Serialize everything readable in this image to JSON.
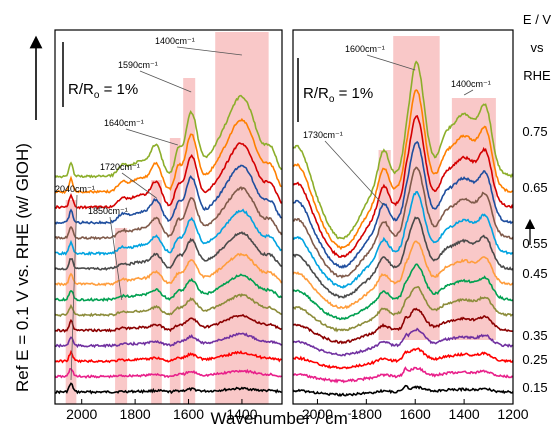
{
  "chart_data": [
    {
      "type": "line",
      "panel": "left",
      "xlim": [
        2100,
        1250
      ],
      "x_ticks": [
        2000,
        1800,
        1600,
        1400
      ],
      "scale_bar_text": "R/Ro = 1%",
      "scale_bar_base": "R/R",
      "scale_bar_sub": "o",
      "scale_bar_rest": " = 1%",
      "shaded_bands": [
        {
          "label": "2040cm-1",
          "x": [
            2060,
            2020
          ]
        },
        {
          "label": "1850cm-1",
          "x": [
            1875,
            1830
          ]
        },
        {
          "label": "1720cm-1",
          "x": [
            1740,
            1700
          ]
        },
        {
          "label": "1640cm-1",
          "x": [
            1670,
            1630
          ]
        },
        {
          "label": "1590cm-1",
          "x": [
            1620,
            1575
          ]
        },
        {
          "label": "1400cm-1",
          "x": [
            1500,
            1300
          ]
        }
      ],
      "annotations": [
        "2040cm⁻¹",
        "1850cm⁻¹",
        "1720cm⁻¹",
        "1640cm⁻¹",
        "1590cm⁻¹",
        "1400cm⁻¹"
      ],
      "series_potentials": [
        0.15,
        0.2,
        0.25,
        0.3,
        0.35,
        0.4,
        0.45,
        0.5,
        0.55,
        0.6,
        0.65,
        0.7,
        0.75,
        0.8,
        0.85
      ],
      "series_colors": [
        "#000000",
        "#e8208a",
        "#ff0000",
        "#7030a0",
        "#8b0000",
        "#8c8c3a",
        "#00a050",
        "#ff9d3c",
        "#4a4a4a",
        "#00a3e0",
        "#7f5a4a",
        "#1f4e9e",
        "#d40000",
        "#ff7f00",
        "#8cae2a"
      ],
      "series_peak_amplitude": [
        0.06,
        0.1,
        0.15,
        0.2,
        0.26,
        0.34,
        0.42,
        0.52,
        0.62,
        0.74,
        0.86,
        0.98,
        1.1,
        1.24,
        1.38
      ]
    },
    {
      "type": "line",
      "panel": "right",
      "xlim": [
        2100,
        1200
      ],
      "x_ticks": [
        2000,
        1800,
        1600,
        1400,
        1200
      ],
      "scale_bar_text": "R/Ro = 1%",
      "scale_bar_base": "R/R",
      "scale_bar_sub": "o",
      "scale_bar_rest": " = 1%",
      "shaded_bands": [
        {
          "label": "1730cm-1",
          "x": [
            1750,
            1700
          ]
        },
        {
          "label": "1600cm-1",
          "x": [
            1690,
            1500
          ]
        },
        {
          "label": "1400cm-1",
          "x": [
            1450,
            1270
          ]
        }
      ],
      "annotations": [
        "1730cm⁻¹",
        "1600cm⁻¹",
        "1400cm⁻¹"
      ],
      "series_potentials": [
        0.15,
        0.2,
        0.25,
        0.3,
        0.35,
        0.4,
        0.45,
        0.5,
        0.55,
        0.6,
        0.65,
        0.7,
        0.75,
        0.8,
        0.85
      ],
      "series_colors": [
        "#000000",
        "#e8208a",
        "#ff0000",
        "#7030a0",
        "#8b0000",
        "#8c8c3a",
        "#00a050",
        "#ff9d3c",
        "#4a4a4a",
        "#00a3e0",
        "#7f5a4a",
        "#1f4e9e",
        "#d40000",
        "#ff7f00",
        "#8cae2a"
      ],
      "series_peak_amplitude": [
        0.06,
        0.1,
        0.15,
        0.2,
        0.26,
        0.34,
        0.42,
        0.52,
        0.62,
        0.74,
        0.86,
        0.98,
        1.1,
        1.24,
        1.38
      ]
    }
  ],
  "axes": {
    "xlabel": "Wavenumber / cm-1",
    "xlabel_base": "Wavenumber / cm",
    "xlabel_sup": "-1",
    "ylabel": "Ref E = 0.1 V vs. RHE (w/ GlOH)"
  },
  "potential_axis": {
    "title_lines": [
      "E / V",
      "vs",
      "RHE"
    ],
    "labels": [
      "0.75",
      "0.65",
      "0.55",
      "0.45",
      "0.35",
      "0.25",
      "0.15"
    ]
  }
}
